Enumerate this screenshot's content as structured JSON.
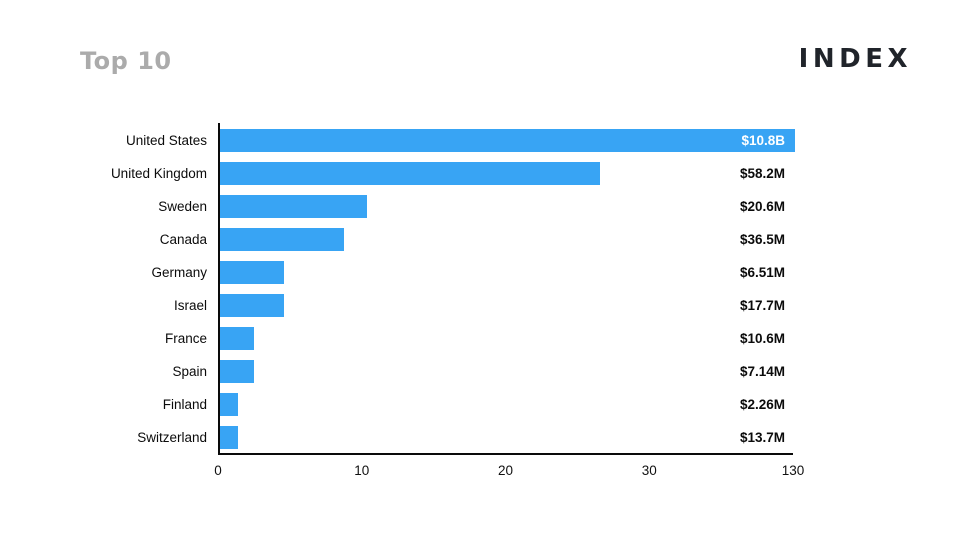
{
  "header": {
    "title": "Top 10",
    "logo": "INDEX"
  },
  "chart_data": {
    "type": "bar",
    "orientation": "horizontal",
    "title": "Top 10",
    "categories": [
      "United States",
      "United Kingdom",
      "Sweden",
      "Canada",
      "Germany",
      "Israel",
      "France",
      "Spain",
      "Finland",
      "Switzerland"
    ],
    "value_labels": [
      "$10.8B",
      "$58.2M",
      "$20.6M",
      "$36.5M",
      "$6.51M",
      "$17.7M",
      "$10.6M",
      "$7.14M",
      "$2.26M",
      "$13.7M"
    ],
    "bar_lengths_axis_units": [
      130,
      26.4,
      10.2,
      8.6,
      4.45,
      4.45,
      2.37,
      2.37,
      1.25,
      1.25
    ],
    "x_ticks": [
      {
        "label": "0",
        "pos": 0
      },
      {
        "label": "10",
        "pos": 0.25
      },
      {
        "label": "20",
        "pos": 0.5
      },
      {
        "label": "30",
        "pos": 0.75
      },
      {
        "label": "130",
        "pos": 1
      }
    ],
    "x_axis_scale": "non-linear: 0-30 spans first 75% of axis, 30-130 compressed into last 25%; ticks evenly spaced",
    "value_label_inside_bar_rows": [
      0
    ],
    "grid": false,
    "legend": null,
    "colors": {
      "bar": "#38a4f4",
      "value_label_inside": "#ffffff",
      "text": "#0b0b0b",
      "title_gray": "#ababab",
      "logo_dark": "#20242a",
      "axis": "#0a0a0a"
    }
  }
}
